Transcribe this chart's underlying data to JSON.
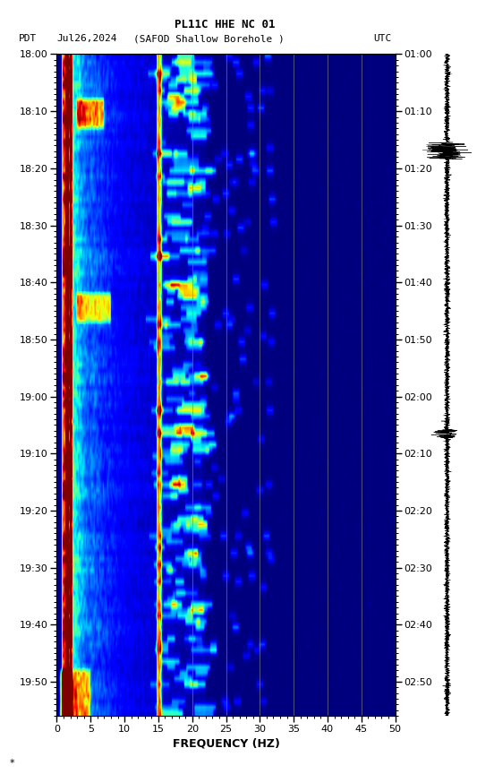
{
  "title_line1": "PL11C HHE NC 01",
  "title_line2_left": "PDT",
  "title_line2_center_left": "Jul26,2024",
  "title_line2_center": "(SAFOD Shallow Borehole )",
  "title_line2_right": "UTC",
  "xlabel": "FREQUENCY (HZ)",
  "freq_min": 0,
  "freq_max": 50,
  "left_time_labels": [
    "18:00",
    "18:10",
    "18:20",
    "18:30",
    "18:40",
    "18:50",
    "19:00",
    "19:10",
    "19:20",
    "19:30",
    "19:40",
    "19:50"
  ],
  "right_time_labels": [
    "01:00",
    "01:10",
    "01:20",
    "01:30",
    "01:40",
    "01:50",
    "02:00",
    "02:10",
    "02:20",
    "02:30",
    "02:40",
    "02:50"
  ],
  "vertical_gridlines": [
    15,
    20,
    25,
    30,
    35,
    40,
    45
  ],
  "fig_width": 5.52,
  "fig_height": 8.64,
  "dpi": 100,
  "n_time": 116,
  "n_freq": 300,
  "seed": 12345
}
